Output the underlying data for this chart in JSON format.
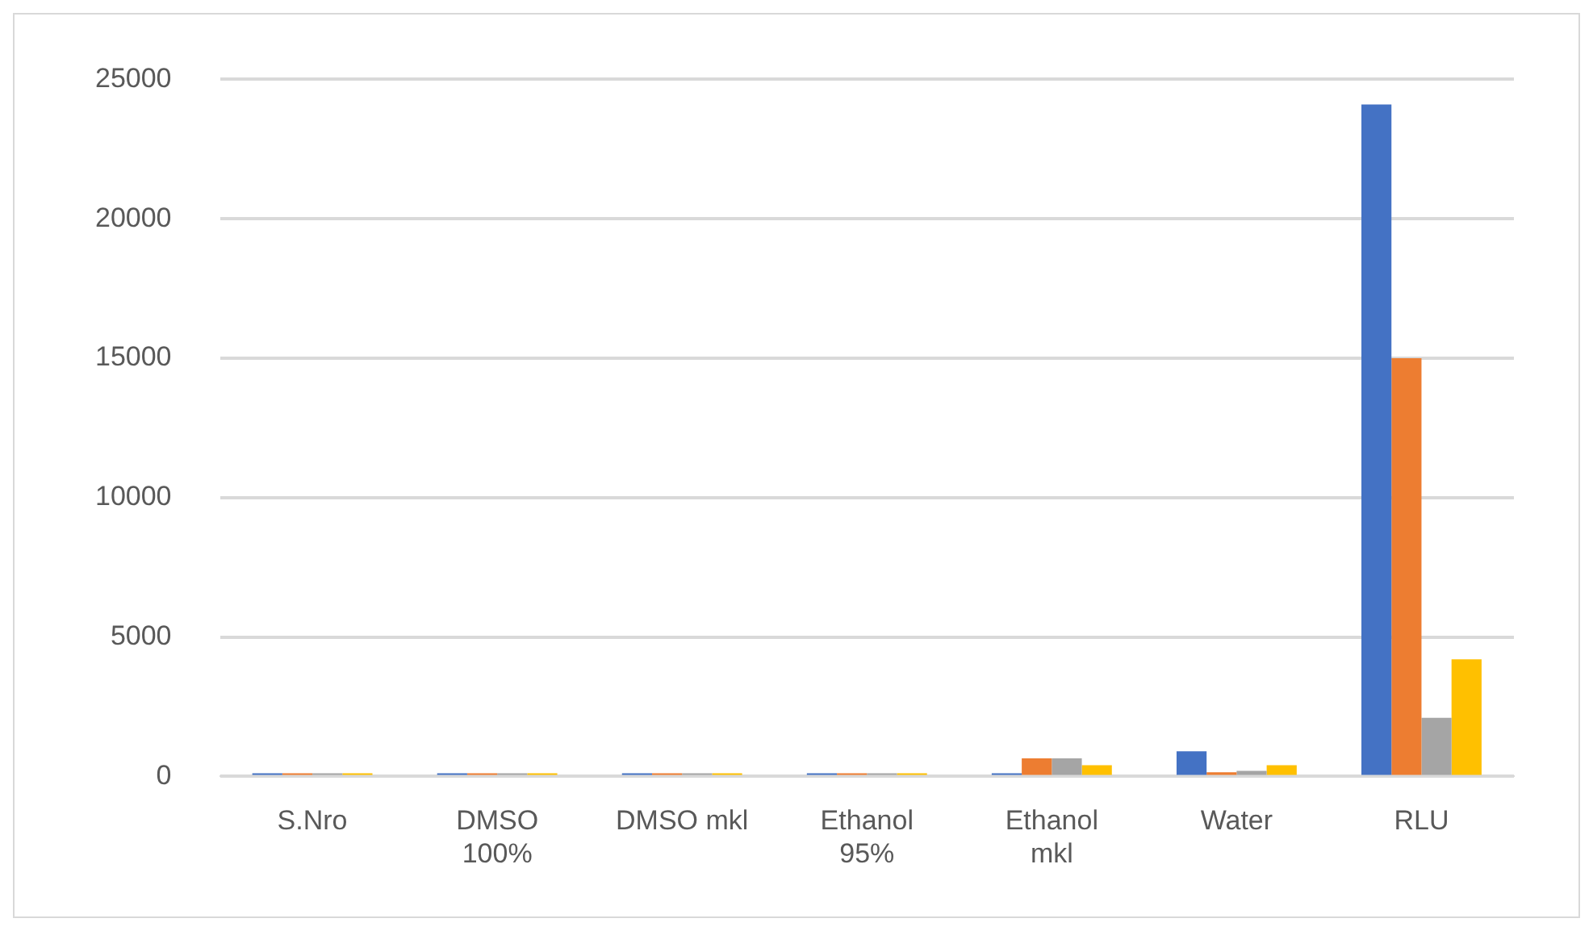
{
  "chart_data": {
    "type": "bar",
    "categories": [
      "S.Nro",
      "DMSO 100%",
      "DMSO mkl",
      "Ethanol 95%",
      "Ethanol mkl",
      "Water",
      "RLU"
    ],
    "series": [
      {
        "color": "#4472c4",
        "values": [
          0,
          0,
          0,
          0,
          0,
          900,
          24100
        ]
      },
      {
        "color": "#ed7d31",
        "values": [
          0,
          0,
          0,
          50,
          650,
          150,
          15000
        ]
      },
      {
        "color": "#a5a5a5",
        "values": [
          0,
          0,
          0,
          0,
          650,
          200,
          2100
        ]
      },
      {
        "color": "#ffc000",
        "values": [
          0,
          0,
          0,
          50,
          400,
          400,
          4200
        ]
      }
    ],
    "ylim": [
      0,
      25000
    ],
    "yticks": [
      0,
      5000,
      10000,
      15000,
      20000,
      25000
    ],
    "grid": "y",
    "legend": false
  }
}
